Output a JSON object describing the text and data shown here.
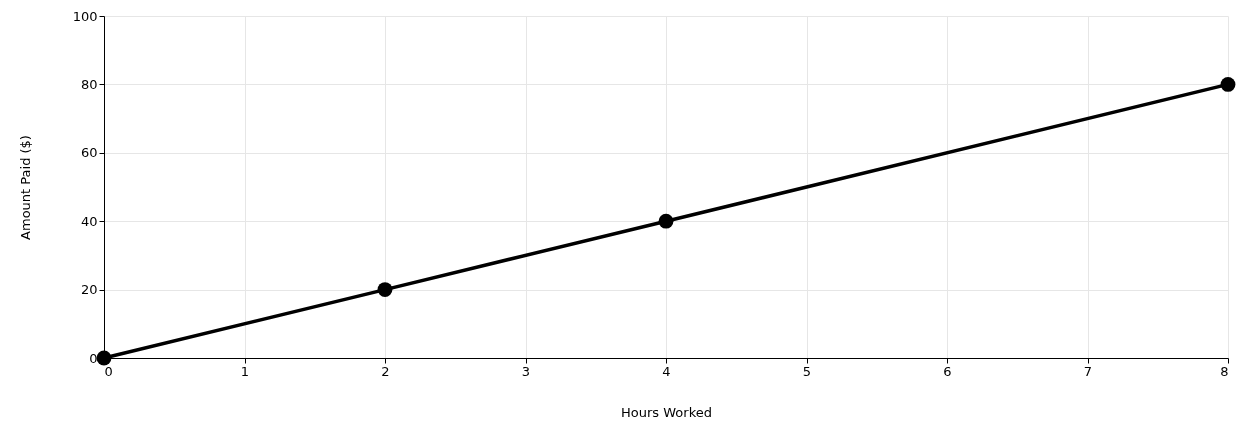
{
  "chart_data": {
    "type": "line",
    "xlabel": "Hours Worked",
    "ylabel": "Amount Paid ($)",
    "x": [
      0,
      2,
      4,
      8
    ],
    "series": [
      {
        "color": "#000000",
        "values": [
          0,
          20,
          40,
          80
        ]
      }
    ],
    "xlim": [
      0,
      8
    ],
    "xticks": [
      0,
      1,
      2,
      3,
      4,
      5,
      6,
      7,
      8
    ],
    "ylim": [
      0,
      100
    ],
    "yticks": [
      0,
      20,
      40,
      60,
      80,
      100
    ],
    "grid": true,
    "marker": "circle",
    "line_style": "solid"
  }
}
